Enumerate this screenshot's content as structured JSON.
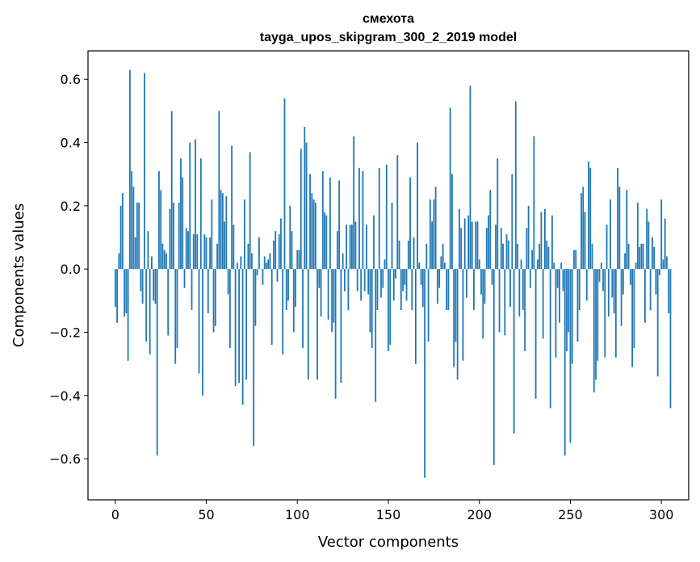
{
  "chart_data": {
    "type": "bar",
    "title": "смехота",
    "subtitle": "tayga_upos_skipgram_300_2_2019 model",
    "xlabel": "Vector components",
    "ylabel": "Components values",
    "xlim": [
      -15,
      315
    ],
    "ylim": [
      -0.73,
      0.69
    ],
    "xticks": [
      0,
      50,
      100,
      150,
      200,
      250,
      300
    ],
    "yticks": [
      -0.6,
      -0.4,
      -0.2,
      0.0,
      0.2,
      0.4,
      0.6
    ],
    "ytick_labels": [
      "−0.6",
      "−0.4",
      "−0.2",
      "0.0",
      "0.2",
      "0.4",
      "0.6"
    ],
    "grid": false,
    "bar_color": "#1f77b4",
    "values": [
      -0.12,
      -0.17,
      0.05,
      0.2,
      0.24,
      -0.15,
      -0.14,
      -0.29,
      0.63,
      0.31,
      0.26,
      0.1,
      0.21,
      0.21,
      -0.07,
      -0.11,
      0.62,
      -0.23,
      0.12,
      -0.27,
      0.04,
      -0.1,
      -0.11,
      -0.59,
      0.31,
      0.25,
      0.08,
      0.06,
      0.05,
      -0.21,
      0.19,
      0.5,
      0.21,
      -0.3,
      -0.25,
      0.21,
      0.35,
      0.29,
      -0.06,
      0.13,
      0.12,
      0.4,
      -0.13,
      0.11,
      0.41,
      0.11,
      -0.33,
      0.35,
      -0.4,
      0.11,
      0.1,
      -0.14,
      0.1,
      0.22,
      -0.2,
      -0.18,
      0.08,
      0.5,
      0.25,
      0.24,
      0.15,
      0.23,
      -0.08,
      -0.25,
      0.39,
      0.14,
      -0.37,
      0.02,
      -0.36,
      0.04,
      -0.43,
      0.22,
      -0.35,
      0.08,
      0.37,
      0.05,
      -0.56,
      -0.18,
      -0.02,
      0.1,
      0.0,
      -0.05,
      0.04,
      0.02,
      0.03,
      0.05,
      -0.24,
      0.09,
      0.12,
      -0.04,
      0.11,
      0.16,
      -0.27,
      0.54,
      -0.13,
      -0.1,
      0.2,
      0.12,
      -0.2,
      -0.12,
      0.06,
      0.06,
      0.38,
      -0.25,
      0.45,
      0.4,
      -0.35,
      0.3,
      0.24,
      0.22,
      0.21,
      -0.35,
      -0.06,
      -0.15,
      0.31,
      0.18,
      0.17,
      -0.16,
      0.29,
      -0.2,
      -0.17,
      -0.41,
      0.12,
      0.28,
      -0.36,
      0.05,
      -0.07,
      0.14,
      -0.13,
      0.14,
      0.14,
      0.42,
      0.15,
      -0.07,
      0.32,
      -0.1,
      0.31,
      -0.07,
      0.14,
      -0.08,
      -0.2,
      -0.25,
      0.17,
      -0.42,
      -0.13,
      0.32,
      -0.09,
      -0.06,
      0.03,
      0.33,
      -0.26,
      -0.24,
      0.21,
      -0.1,
      -0.03,
      0.36,
      0.09,
      -0.13,
      -0.07,
      -0.05,
      -0.1,
      0.09,
      0.29,
      -0.13,
      0.1,
      -0.3,
      0.4,
      0.02,
      -0.05,
      -0.12,
      -0.66,
      0.08,
      -0.23,
      0.22,
      0.15,
      0.22,
      0.26,
      -0.11,
      -0.06,
      0.04,
      0.08,
      0.02,
      -0.13,
      -0.13,
      0.51,
      0.3,
      -0.31,
      -0.23,
      -0.35,
      0.19,
      0.13,
      -0.29,
      0.16,
      -0.09,
      0.17,
      0.58,
      0.15,
      -0.13,
      0.15,
      0.15,
      0.03,
      -0.08,
      -0.22,
      -0.11,
      0.13,
      0.17,
      0.25,
      -0.05,
      -0.62,
      0.14,
      0.35,
      -0.2,
      0.13,
      0.08,
      -0.21,
      0.11,
      0.09,
      -0.12,
      0.3,
      -0.52,
      0.53,
      0.08,
      -0.15,
      0.03,
      -0.13,
      -0.26,
      0.13,
      0.2,
      -0.06,
      0.06,
      0.42,
      -0.41,
      0.03,
      0.08,
      0.18,
      -0.22,
      0.19,
      0.09,
      0.07,
      -0.44,
      0.17,
      0.02,
      -0.28,
      -0.06,
      -0.17,
      0.02,
      -0.07,
      -0.59,
      -0.26,
      -0.2,
      -0.55,
      -0.3,
      0.06,
      0.06,
      -0.23,
      -0.13,
      0.24,
      0.26,
      0.18,
      -0.1,
      0.34,
      0.32,
      0.08,
      -0.39,
      -0.35,
      -0.29,
      -0.04,
      0.02,
      -0.07,
      -0.28,
      0.14,
      -0.15,
      0.22,
      -0.09,
      -0.14,
      -0.28,
      0.32,
      0.26,
      -0.18,
      -0.08,
      0.05,
      0.25,
      0.08,
      -0.05,
      -0.31,
      -0.25,
      0.02,
      0.21,
      0.07,
      0.08,
      0.08,
      -0.17,
      0.19,
      0.15,
      -0.13,
      0.1,
      0.07,
      -0.08,
      -0.34,
      -0.02,
      0.22,
      0.03,
      0.16,
      0.04,
      -0.14,
      -0.44
    ]
  }
}
